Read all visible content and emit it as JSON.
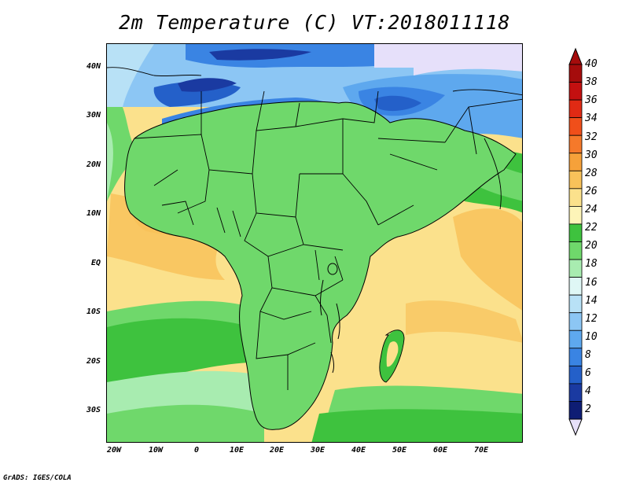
{
  "title": "2m Temperature (C) VT:2018011118",
  "credit": "GrADS: IGES/COLA",
  "map": {
    "lat_labels": [
      "40N",
      "30N",
      "20N",
      "10N",
      "EQ",
      "10S",
      "20S",
      "30S"
    ],
    "lon_labels": [
      "20W",
      "10W",
      "0",
      "10E",
      "20E",
      "30E",
      "40E",
      "50E",
      "60E",
      "70E"
    ]
  },
  "colorbar": {
    "labels": [
      "40",
      "38",
      "36",
      "34",
      "32",
      "30",
      "28",
      "26",
      "24",
      "22",
      "20",
      "18",
      "16",
      "14",
      "12",
      "10",
      "8",
      "6",
      "4",
      "2"
    ],
    "colors": [
      "#a50c0c",
      "#c31010",
      "#e02a14",
      "#f04f1a",
      "#f5792a",
      "#f6a13a",
      "#f8c25a",
      "#fbe18c",
      "#fdf4b8",
      "#3ec23e",
      "#6fd86b",
      "#a8ecb0",
      "#dff7f5",
      "#b8e1f6",
      "#8cc6f4",
      "#5ea8ee",
      "#3a84e3",
      "#2460c9",
      "#1a3aa1",
      "#0e1d74"
    ],
    "over_color": "#a50c0c",
    "under_color": "#e6e0fa"
  }
}
